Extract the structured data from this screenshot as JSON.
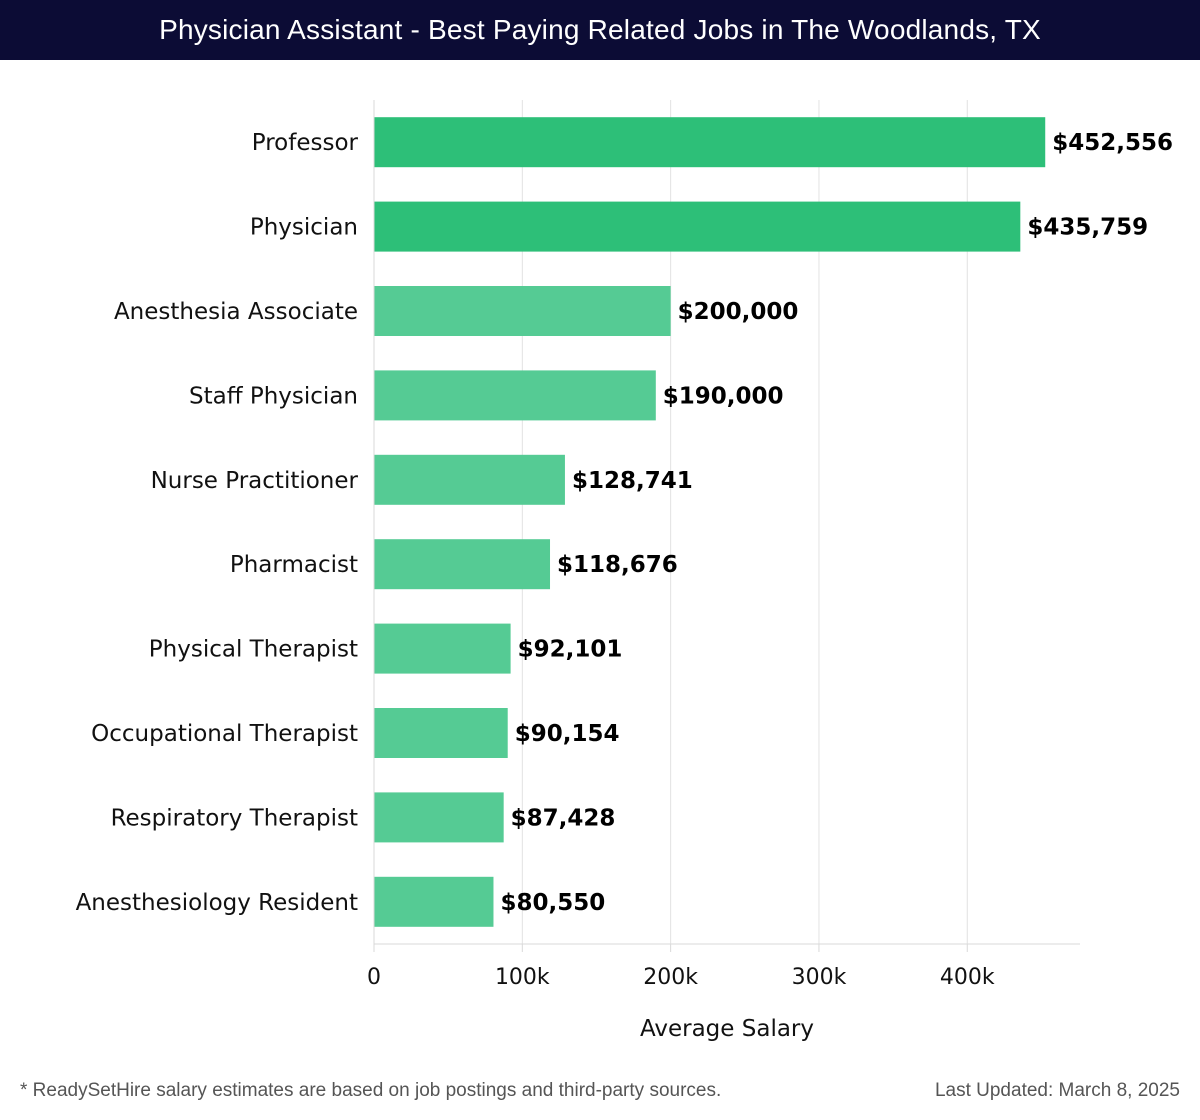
{
  "header": {
    "title": "Physician Assistant - Best Paying Related Jobs in The Woodlands, TX"
  },
  "chart_data": {
    "type": "bar",
    "orientation": "horizontal",
    "title": "Physician Assistant - Best Paying Related Jobs in The Woodlands, TX",
    "categories": [
      "Professor",
      "Physician",
      "Anesthesia Associate",
      "Staff Physician",
      "Nurse Practitioner",
      "Pharmacist",
      "Physical Therapist",
      "Occupational Therapist",
      "Respiratory Therapist",
      "Anesthesiology Resident"
    ],
    "values": [
      452556,
      435759,
      200000,
      190000,
      128741,
      118676,
      92101,
      90154,
      87428,
      80550
    ],
    "value_labels": [
      "$452,556",
      "$435,759",
      "$200,000",
      "$190,000",
      "$128,741",
      "$118,676",
      "$92,101",
      "$90,154",
      "$87,428",
      "$80,550"
    ],
    "xlabel": "Average Salary",
    "ylabel": "",
    "xlim": [
      0,
      476000
    ],
    "xticks": [
      0,
      100000,
      200000,
      300000,
      400000
    ],
    "xtick_labels": [
      "0",
      "100k",
      "200k",
      "300k",
      "400k"
    ],
    "grid": true,
    "colors": {
      "highlight": "#2dbf78",
      "default": "#55cb94"
    },
    "highlight_count": 2
  },
  "footer": {
    "note": "* ReadySetHire salary estimates are based on job postings and third-party sources.",
    "updated": "Last Updated: March 8, 2025"
  }
}
